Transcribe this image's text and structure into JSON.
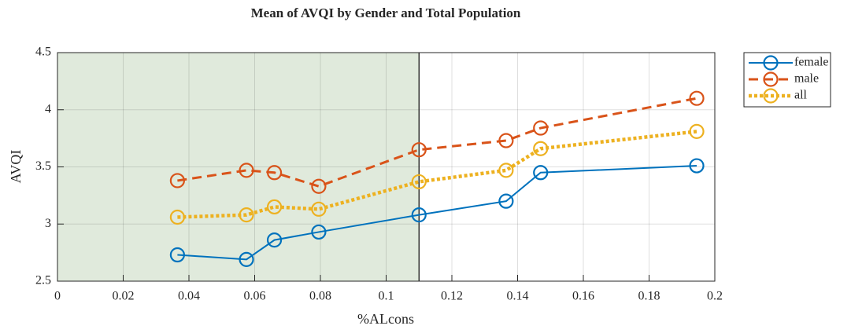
{
  "chart_data": {
    "type": "line",
    "title": "Mean of AVQI by Gender and Total Population",
    "x_label": "%ALcons",
    "y_label": "AVQI",
    "x": [
      0.0365,
      0.0575,
      0.066,
      0.0795,
      0.11,
      0.1365,
      0.147,
      0.1945
    ],
    "series": [
      {
        "name": "female",
        "color": "#0072bd",
        "line_style": "solid",
        "values": [
          2.73,
          2.69,
          2.86,
          2.93,
          3.08,
          3.2,
          3.45,
          3.51
        ]
      },
      {
        "name": "male",
        "color": "#d95319",
        "line_style": "dashed",
        "values": [
          3.38,
          3.47,
          3.45,
          3.33,
          3.65,
          3.73,
          3.84,
          4.1
        ]
      },
      {
        "name": "all",
        "color": "#edb120",
        "line_style": "dotted",
        "values": [
          3.06,
          3.08,
          3.15,
          3.13,
          3.37,
          3.47,
          3.66,
          3.81
        ]
      }
    ],
    "xlim": [
      0,
      0.2
    ],
    "xticks": [
      0,
      0.02,
      0.04,
      0.06,
      0.08,
      0.1,
      0.12,
      0.14,
      0.16,
      0.18,
      0.2
    ],
    "ylim": [
      2.5,
      4.5
    ],
    "yticks": [
      2.5,
      3,
      3.5,
      4,
      4.5
    ],
    "grid": true,
    "legend": "outside-top-right",
    "highlight": {
      "xlim": [
        0,
        0.11
      ],
      "color": "#e0eadc"
    }
  }
}
